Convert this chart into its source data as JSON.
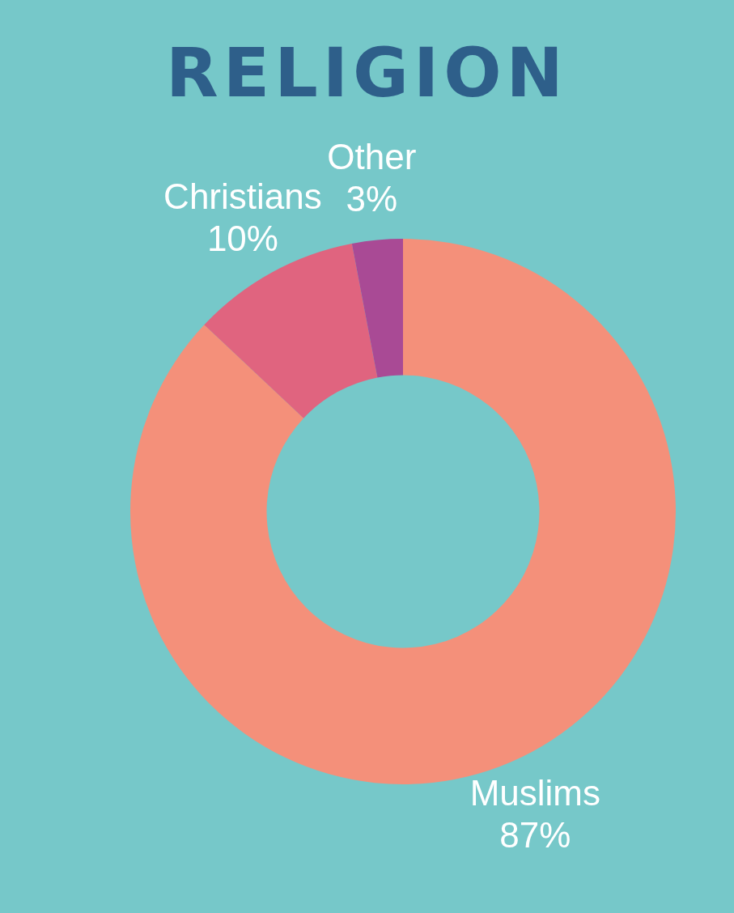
{
  "chart_data": {
    "type": "donut",
    "title": "RELIGION",
    "categories": [
      "Muslims",
      "Christians",
      "Other"
    ],
    "values": [
      87,
      10,
      3
    ],
    "colors": [
      "#f4907a",
      "#e0647f",
      "#a94a95"
    ],
    "value_labels": [
      "87%",
      "10%",
      "3%"
    ],
    "legend": false
  }
}
